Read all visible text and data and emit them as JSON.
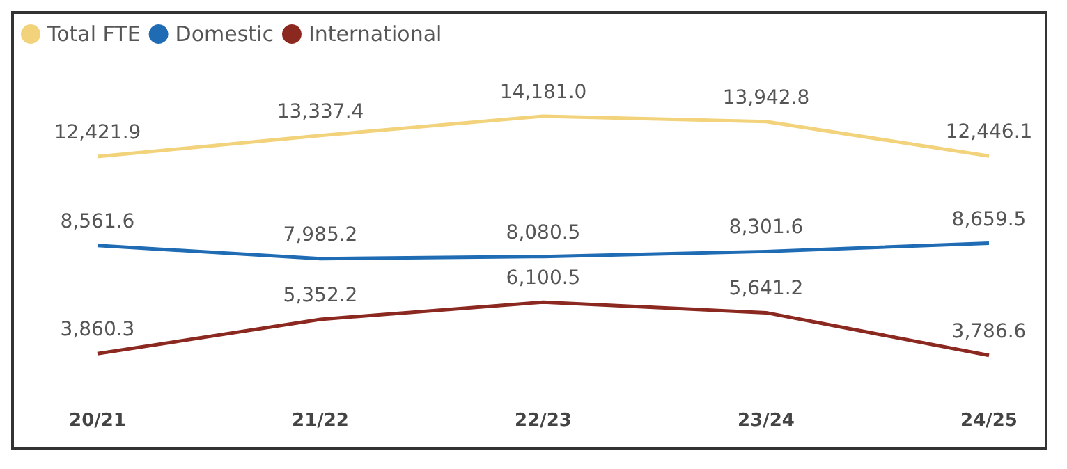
{
  "chart_data": {
    "type": "line",
    "categories": [
      "20/21",
      "21/22",
      "22/23",
      "23/24",
      "24/25"
    ],
    "series": [
      {
        "name": "Total FTE",
        "color": "#f2d27a",
        "values": [
          12421.9,
          13337.4,
          14181.0,
          13942.8,
          12446.1
        ],
        "value_labels": [
          "12,421.9",
          "13,337.4",
          "14,181.0",
          "13,942.8",
          "12,446.1"
        ]
      },
      {
        "name": "Domestic",
        "color": "#1f6cb4",
        "values": [
          8561.6,
          7985.2,
          8080.5,
          8301.6,
          8659.5
        ],
        "value_labels": [
          "8,561.6",
          "7,985.2",
          "8,080.5",
          "8,301.6",
          "8,659.5"
        ]
      },
      {
        "name": "International",
        "color": "#8b2820",
        "values": [
          3860.3,
          5352.2,
          6100.5,
          5641.2,
          3786.6
        ],
        "value_labels": [
          "3,860.3",
          "5,352.2",
          "6,100.5",
          "5,641.2",
          "3,786.6"
        ]
      }
    ],
    "legend": "top left",
    "grid": false,
    "marker": "none",
    "tick_labels": "x"
  }
}
